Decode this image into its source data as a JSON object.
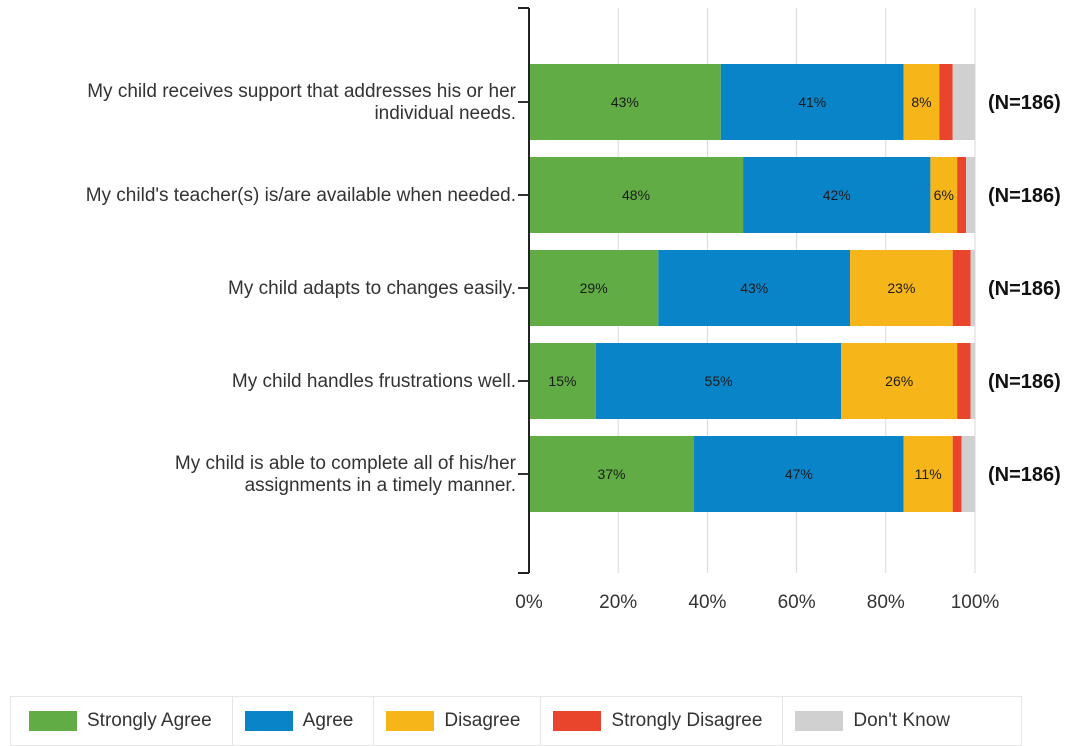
{
  "chart_data": {
    "type": "bar",
    "orientation": "horizontal",
    "stacked": true,
    "categories": [
      [
        "My child receives support that addresses his or her",
        "individual needs."
      ],
      [
        "My child's teacher(s) is/are available when needed."
      ],
      [
        "My child adapts to changes easily."
      ],
      [
        "My child handles frustrations well."
      ],
      [
        "My child is able to complete all of his/her",
        "assignments in a timely manner."
      ]
    ],
    "series": [
      {
        "name": "Strongly Agree",
        "color": "#62ac45",
        "values": [
          43,
          48,
          29,
          15,
          37
        ],
        "labels": [
          "43%",
          "48%",
          "29%",
          "15%",
          "37%"
        ]
      },
      {
        "name": "Agree",
        "color": "#0a84c8",
        "values": [
          41,
          42,
          43,
          55,
          47
        ],
        "labels": [
          "41%",
          "42%",
          "43%",
          "55%",
          "47%"
        ]
      },
      {
        "name": "Disagree",
        "color": "#f6b61a",
        "values": [
          8,
          6,
          23,
          26,
          11
        ],
        "labels": [
          "8%",
          "6%",
          "23%",
          "26%",
          "11%"
        ]
      },
      {
        "name": "Strongly Disagree",
        "color": "#e8452c",
        "values": [
          3,
          2,
          4,
          3,
          2
        ],
        "labels": [
          "",
          "",
          "",
          "",
          ""
        ]
      },
      {
        "name": "Don't Know",
        "color": "#d0d0d0",
        "values": [
          5,
          2,
          1,
          1,
          3
        ],
        "labels": [
          "",
          "",
          "",
          "",
          ""
        ]
      }
    ],
    "n_labels": [
      "(N=186)",
      "(N=186)",
      "(N=186)",
      "(N=186)",
      "(N=186)"
    ],
    "xlim": [
      0,
      100
    ],
    "xticks": [
      "0%",
      "20%",
      "40%",
      "60%",
      "80%",
      "100%"
    ],
    "grid": true,
    "legend_position": "bottom"
  }
}
